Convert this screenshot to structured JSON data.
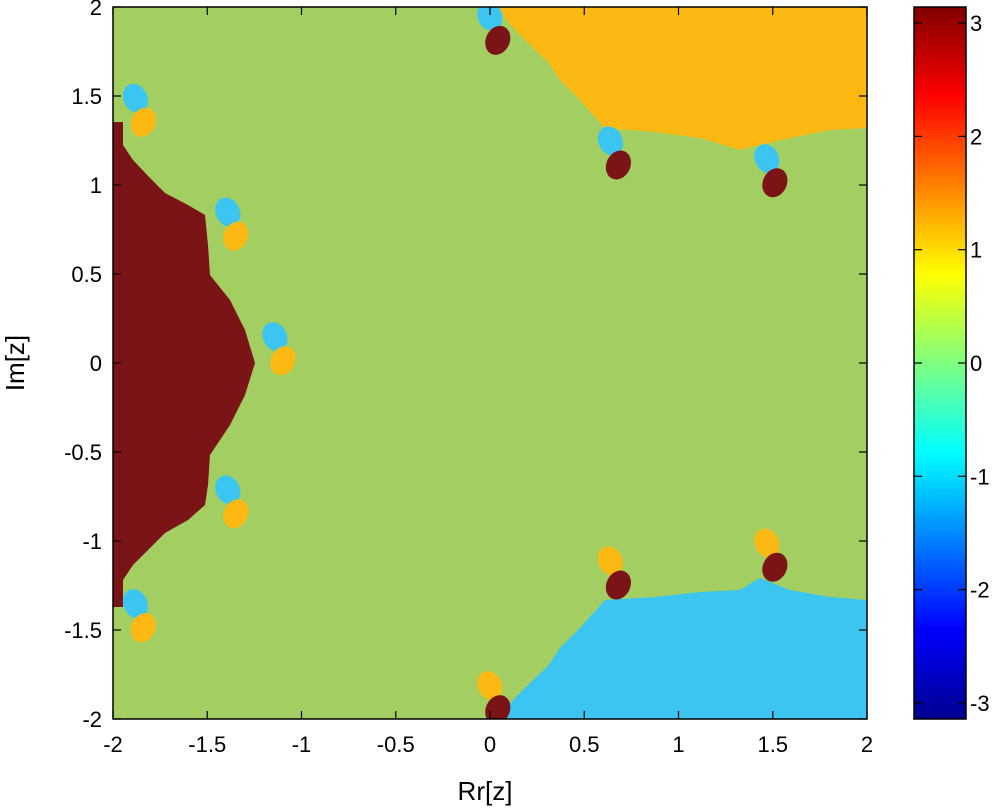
{
  "chart_data": {
    "type": "heatmap",
    "title": "",
    "xlabel": "Rr[z]",
    "ylabel": "Im[z]",
    "xlim": [
      -2,
      2
    ],
    "ylim": [
      -2,
      2
    ],
    "x_ticks": [
      "-2",
      "-1.5",
      "-1",
      "-0.5",
      "0",
      "0.5",
      "1",
      "1.5",
      "2"
    ],
    "y_ticks": [
      "2",
      "1.5",
      "1",
      "0.5",
      "0",
      "-0.5",
      "-1",
      "-1.5",
      "-2"
    ],
    "grid": false,
    "colorbar": {
      "range": [
        -3.14159,
        3.14159
      ],
      "ticks": [
        "3",
        "2",
        "1",
        "0",
        "-1",
        "-2",
        "-3"
      ],
      "colormap": "jet"
    },
    "basins": [
      {
        "phase": 0.0,
        "color": "#a3cf62",
        "region": "background"
      },
      {
        "phase": 3.14159,
        "color": "#7b1416",
        "region": "left"
      },
      {
        "phase": 1.047,
        "color": "#fdb913",
        "region": "upper-right"
      },
      {
        "phase": -1.047,
        "color": "#3cc5f0",
        "region": "lower-right"
      }
    ],
    "features": [
      {
        "kind": "pair",
        "x": -1.12,
        "y": 0.08,
        "c1": "#3cc5f0",
        "c2": "#fdb913"
      },
      {
        "kind": "pair",
        "x": -1.37,
        "y": 0.78,
        "c1": "#3cc5f0",
        "c2": "#fdb913"
      },
      {
        "kind": "pair",
        "x": -1.37,
        "y": -0.78,
        "c1": "#3cc5f0",
        "c2": "#fdb913"
      },
      {
        "kind": "pair",
        "x": -1.86,
        "y": 1.42,
        "c1": "#3cc5f0",
        "c2": "#fdb913"
      },
      {
        "kind": "pair",
        "x": -1.86,
        "y": -1.42,
        "c1": "#3cc5f0",
        "c2": "#fdb913"
      },
      {
        "kind": "pair",
        "x": 0.66,
        "y": 1.18,
        "c1": "#3cc5f0",
        "c2": "#7b1416"
      },
      {
        "kind": "pair",
        "x": 1.49,
        "y": 1.08,
        "c1": "#3cc5f0",
        "c2": "#7b1416"
      },
      {
        "kind": "pair",
        "x": 0.66,
        "y": -1.18,
        "c1": "#fdb913",
        "c2": "#7b1416"
      },
      {
        "kind": "pair",
        "x": 1.49,
        "y": -1.08,
        "c1": "#fdb913",
        "c2": "#7b1416"
      },
      {
        "kind": "pair",
        "x": 0.02,
        "y": 1.88,
        "c1": "#3cc5f0",
        "c2": "#7b1416"
      },
      {
        "kind": "pair",
        "x": 0.02,
        "y": -1.88,
        "c1": "#fdb913",
        "c2": "#7b1416"
      }
    ]
  }
}
